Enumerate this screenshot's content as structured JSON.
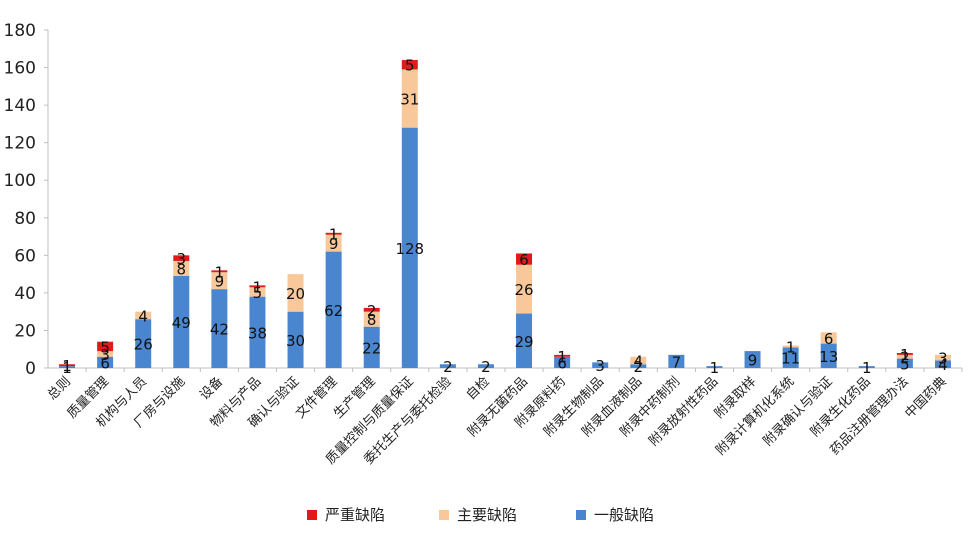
{
  "chart_data": {
    "type": "bar",
    "stacked": true,
    "categories": [
      "总则",
      "质量管理",
      "机构与人员",
      "厂房与设施",
      "设备",
      "物料与产品",
      "确认与验证",
      "文件管理",
      "生产管理",
      "质量控制与质量保证",
      "委托生产与委托检验",
      "自检",
      "附录无菌药品",
      "附录原料药",
      "附录生物制品",
      "附录血液制品",
      "附录中药制剂",
      "附录放射性药品",
      "附录取样",
      "附录计算机化系统",
      "附录确认与验证",
      "附录生化药品",
      "药品注册管理办法",
      "中国药典"
    ],
    "series": [
      {
        "name": "一般缺陷",
        "color": "#4a86cf",
        "values": [
          1,
          6,
          26,
          49,
          42,
          38,
          30,
          62,
          22,
          128,
          2,
          2,
          29,
          6,
          3,
          2,
          7,
          1,
          9,
          11,
          13,
          1,
          5,
          4
        ]
      },
      {
        "name": "主要缺陷",
        "color": "#f8c89a",
        "values": [
          0,
          3,
          4,
          8,
          9,
          5,
          20,
          9,
          8,
          31,
          0,
          0,
          26,
          0,
          0,
          4,
          0,
          0,
          0,
          1,
          6,
          0,
          2,
          3
        ]
      },
      {
        "name": "严重缺陷",
        "color": "#e31a1c",
        "values": [
          1,
          5,
          0,
          3,
          1,
          1,
          0,
          1,
          2,
          5,
          0,
          0,
          6,
          1,
          0,
          0,
          0,
          0,
          0,
          0,
          0,
          0,
          1,
          0
        ]
      }
    ],
    "ylim": [
      0,
      180
    ],
    "yticks": [
      0,
      20,
      40,
      60,
      80,
      100,
      120,
      140,
      160,
      180
    ],
    "legend_order": [
      "严重缺陷",
      "主要缺陷",
      "一般缺陷"
    ],
    "legend_position": "bottom",
    "grid": false
  }
}
